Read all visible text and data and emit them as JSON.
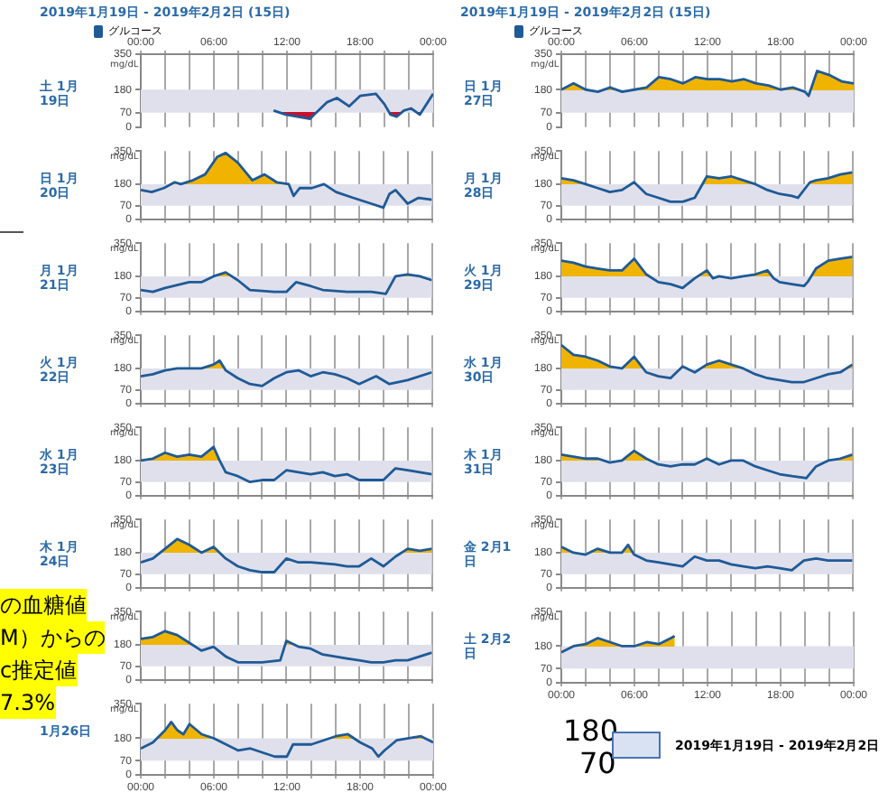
{
  "chart_data": [
    {
      "type": "line",
      "title": "2019年1月19日 - 2019年2月2日 (15日)",
      "subtitle": "土 1月19日",
      "ylabel": "mg/dL",
      "legend": "top left",
      "grid": "x",
      "series": [
        {
          "name": "グルコース",
          "color": "#1f5a96",
          "x": [
            10.9,
            11.9,
            13.9,
            14.4,
            15.3,
            16.1,
            17.1,
            18.0,
            19.3,
            20.0,
            20.5,
            21.0,
            21.6,
            22.2,
            22.9,
            24
          ],
          "values": [
            80,
            60,
            40,
            70,
            120,
            140,
            100,
            150,
            160,
            110,
            60,
            50,
            80,
            90,
            60,
            160
          ]
        }
      ],
      "xlim": [
        0,
        24
      ],
      "xticks": [
        {
          "value": 0,
          "label": "00:00"
        },
        {
          "value": 2,
          "label": null
        },
        {
          "value": 4,
          "label": null
        },
        {
          "value": 6,
          "label": "06:00"
        },
        {
          "value": 8,
          "label": null
        },
        {
          "value": 10,
          "label": null
        },
        {
          "value": 12,
          "label": "12:00"
        },
        {
          "value": 14,
          "label": null
        },
        {
          "value": 16,
          "label": null
        },
        {
          "value": 18,
          "label": "18:00"
        },
        {
          "value": 20,
          "label": null
        },
        {
          "value": 22,
          "label": null
        },
        {
          "value": 24,
          "label": "00:00"
        }
      ],
      "ylim": [
        0,
        350
      ],
      "yticks": [
        0,
        70,
        180,
        350
      ],
      "bands": [
        {
          "axis": "y",
          "from": 70,
          "to": 180,
          "color": "#dfe0ec"
        }
      ]
    },
    {
      "type": "line",
      "subtitle": "日 1月20日",
      "ylabel": "mg/dL",
      "grid": "x",
      "tick_labels": "y",
      "series": [
        {
          "color": "#1f5a96",
          "x": [
            0,
            0.9,
            1.9,
            2.8,
            3.3,
            4.3,
            5.3,
            6.3,
            7.0,
            8.0,
            9.2,
            10.2,
            11.2,
            12.2,
            12.6,
            13.1,
            14.1,
            15.1,
            16.1,
            17.5,
            19.0,
            20.0,
            20.5,
            21.0,
            22.0,
            22.9,
            24
          ],
          "values": [
            150,
            140,
            160,
            190,
            180,
            200,
            230,
            320,
            340,
            290,
            200,
            230,
            190,
            180,
            120,
            160,
            160,
            180,
            140,
            110,
            80,
            60,
            130,
            150,
            80,
            110,
            100
          ]
        }
      ],
      "xlim": [
        0,
        24
      ],
      "xticks": [
        {
          "value": 0,
          "label": null
        },
        {
          "value": 2,
          "label": null
        },
        {
          "value": 4,
          "label": null
        },
        {
          "value": 6,
          "label": null
        },
        {
          "value": 8,
          "label": null
        },
        {
          "value": 10,
          "label": null
        },
        {
          "value": 12,
          "label": null
        },
        {
          "value": 14,
          "label": null
        },
        {
          "value": 16,
          "label": null
        },
        {
          "value": 18,
          "label": null
        },
        {
          "value": 20,
          "label": null
        },
        {
          "value": 22,
          "label": null
        },
        {
          "value": 24,
          "label": null
        }
      ],
      "ylim": [
        0,
        350
      ],
      "yticks": [
        0,
        70,
        180,
        350
      ],
      "bands": [
        {
          "axis": "y",
          "from": 70,
          "to": 180,
          "color": "#dfe0ec"
        }
      ]
    },
    {
      "type": "line",
      "subtitle": "月 1月21日",
      "ylabel": "mg/dL",
      "grid": "x",
      "tick_labels": "y",
      "series": [
        {
          "color": "#1f5a96",
          "x": [
            0,
            1,
            2,
            4,
            5,
            6,
            7,
            8,
            9,
            11,
            12,
            12.8,
            14,
            15,
            17,
            19,
            20.2,
            21,
            22,
            23,
            24
          ],
          "values": [
            110,
            100,
            120,
            150,
            150,
            180,
            200,
            160,
            110,
            100,
            100,
            150,
            130,
            110,
            100,
            100,
            90,
            180,
            190,
            180,
            160
          ]
        }
      ],
      "xlim": [
        0,
        24
      ],
      "xticks": [
        {
          "value": 0,
          "label": null
        },
        {
          "value": 2,
          "label": null
        },
        {
          "value": 4,
          "label": null
        },
        {
          "value": 6,
          "label": null
        },
        {
          "value": 8,
          "label": null
        },
        {
          "value": 10,
          "label": null
        },
        {
          "value": 12,
          "label": null
        },
        {
          "value": 14,
          "label": null
        },
        {
          "value": 16,
          "label": null
        },
        {
          "value": 18,
          "label": null
        },
        {
          "value": 20,
          "label": null
        },
        {
          "value": 22,
          "label": null
        },
        {
          "value": 24,
          "label": null
        }
      ],
      "ylim": [
        0,
        350
      ],
      "yticks": [
        0,
        70,
        180,
        350
      ],
      "bands": [
        {
          "axis": "y",
          "from": 70,
          "to": 180,
          "color": "#dfe0ec"
        }
      ]
    },
    {
      "type": "line",
      "subtitle": "火 1月22日",
      "ylabel": "mg/dL",
      "grid": "x",
      "tick_labels": "y",
      "series": [
        {
          "color": "#1f5a96",
          "x": [
            0,
            1,
            2,
            3,
            4,
            5,
            6,
            6.5,
            7,
            8,
            9,
            10,
            11,
            12,
            13,
            14,
            15,
            16,
            17,
            18,
            19.4,
            20.5,
            22,
            24
          ],
          "values": [
            140,
            150,
            170,
            180,
            180,
            180,
            200,
            220,
            170,
            130,
            100,
            90,
            130,
            160,
            170,
            140,
            160,
            150,
            130,
            100,
            140,
            100,
            120,
            160
          ]
        }
      ],
      "xlim": [
        0,
        24
      ],
      "xticks": [
        {
          "value": 0,
          "label": null
        },
        {
          "value": 2,
          "label": null
        },
        {
          "value": 4,
          "label": null
        },
        {
          "value": 6,
          "label": null
        },
        {
          "value": 8,
          "label": null
        },
        {
          "value": 10,
          "label": null
        },
        {
          "value": 12,
          "label": null
        },
        {
          "value": 14,
          "label": null
        },
        {
          "value": 16,
          "label": null
        },
        {
          "value": 18,
          "label": null
        },
        {
          "value": 20,
          "label": null
        },
        {
          "value": 22,
          "label": null
        },
        {
          "value": 24,
          "label": null
        }
      ],
      "ylim": [
        0,
        350
      ],
      "yticks": [
        0,
        70,
        180,
        350
      ],
      "bands": [
        {
          "axis": "y",
          "from": 70,
          "to": 180,
          "color": "#dfe0ec"
        }
      ]
    },
    {
      "type": "line",
      "subtitle": "水 1月23日",
      "ylabel": "mg/dL",
      "grid": "x",
      "tick_labels": "y",
      "series": [
        {
          "color": "#1f5a96",
          "x": [
            0,
            1,
            2,
            3,
            4,
            5,
            6,
            6.5,
            7,
            8,
            9,
            10,
            11,
            12,
            13,
            14,
            15,
            16,
            17,
            18,
            19,
            20,
            21,
            22,
            24
          ],
          "values": [
            180,
            190,
            220,
            200,
            210,
            200,
            250,
            180,
            120,
            100,
            70,
            80,
            80,
            130,
            120,
            110,
            120,
            100,
            110,
            80,
            80,
            80,
            140,
            130,
            110
          ]
        }
      ],
      "xlim": [
        0,
        24
      ],
      "xticks": [
        {
          "value": 0,
          "label": null
        },
        {
          "value": 2,
          "label": null
        },
        {
          "value": 4,
          "label": null
        },
        {
          "value": 6,
          "label": null
        },
        {
          "value": 8,
          "label": null
        },
        {
          "value": 10,
          "label": null
        },
        {
          "value": 12,
          "label": null
        },
        {
          "value": 14,
          "label": null
        },
        {
          "value": 16,
          "label": null
        },
        {
          "value": 18,
          "label": null
        },
        {
          "value": 20,
          "label": null
        },
        {
          "value": 22,
          "label": null
        },
        {
          "value": 24,
          "label": null
        }
      ],
      "ylim": [
        0,
        350
      ],
      "yticks": [
        0,
        70,
        180,
        350
      ],
      "bands": [
        {
          "axis": "y",
          "from": 70,
          "to": 180,
          "color": "#dfe0ec"
        }
      ]
    },
    {
      "type": "line",
      "subtitle": "木 1月24日",
      "ylabel": "mg/dL",
      "grid": "x",
      "tick_labels": "y",
      "series": [
        {
          "color": "#1f5a96",
          "x": [
            0,
            1,
            2,
            3,
            4,
            5,
            6,
            7,
            8,
            9,
            10,
            11,
            12,
            13,
            14,
            16,
            17,
            18,
            19,
            20,
            21,
            22,
            23,
            24
          ],
          "values": [
            130,
            150,
            200,
            250,
            220,
            180,
            210,
            150,
            110,
            90,
            80,
            80,
            150,
            130,
            130,
            120,
            110,
            110,
            150,
            110,
            160,
            200,
            190,
            200
          ]
        }
      ],
      "xlim": [
        0,
        24
      ],
      "xticks": [
        {
          "value": 0,
          "label": null
        },
        {
          "value": 2,
          "label": null
        },
        {
          "value": 4,
          "label": null
        },
        {
          "value": 6,
          "label": null
        },
        {
          "value": 8,
          "label": null
        },
        {
          "value": 10,
          "label": null
        },
        {
          "value": 12,
          "label": null
        },
        {
          "value": 14,
          "label": null
        },
        {
          "value": 16,
          "label": null
        },
        {
          "value": 18,
          "label": null
        },
        {
          "value": 20,
          "label": null
        },
        {
          "value": 22,
          "label": null
        },
        {
          "value": 24,
          "label": null
        }
      ],
      "ylim": [
        0,
        350
      ],
      "yticks": [
        0,
        70,
        180,
        350
      ],
      "bands": [
        {
          "axis": "y",
          "from": 70,
          "to": 180,
          "color": "#dfe0ec"
        }
      ]
    },
    {
      "type": "line",
      "ylabel": "mg/dL",
      "grid": "x",
      "tick_labels": "y",
      "annotations": [
        "の血糖値",
        "M）からの",
        "c推定値",
        "7.3%"
      ],
      "series": [
        {
          "color": "#1f5a96",
          "x": [
            0,
            1,
            2,
            3,
            4,
            5,
            6,
            7,
            8,
            9,
            10,
            11.5,
            12,
            13,
            14,
            15,
            16,
            17,
            18,
            19,
            20,
            21,
            22,
            23,
            24
          ],
          "values": [
            210,
            220,
            250,
            230,
            190,
            150,
            170,
            120,
            90,
            90,
            90,
            100,
            200,
            170,
            160,
            130,
            120,
            110,
            100,
            90,
            90,
            100,
            100,
            120,
            140
          ]
        }
      ],
      "xlim": [
        0,
        24
      ],
      "xticks": [
        {
          "value": 0,
          "label": null
        },
        {
          "value": 2,
          "label": null
        },
        {
          "value": 4,
          "label": null
        },
        {
          "value": 6,
          "label": null
        },
        {
          "value": 8,
          "label": null
        },
        {
          "value": 10,
          "label": null
        },
        {
          "value": 12,
          "label": null
        },
        {
          "value": 14,
          "label": null
        },
        {
          "value": 16,
          "label": null
        },
        {
          "value": 18,
          "label": null
        },
        {
          "value": 20,
          "label": null
        },
        {
          "value": 22,
          "label": null
        },
        {
          "value": 24,
          "label": null
        }
      ],
      "ylim": [
        0,
        350
      ],
      "yticks": [
        0,
        70,
        180,
        350
      ],
      "bands": [
        {
          "axis": "y",
          "from": 70,
          "to": 180,
          "color": "#dfe0ec"
        }
      ]
    },
    {
      "type": "line",
      "subtitle": "1月26日",
      "ylabel": "mg/dL",
      "grid": "x",
      "series": [
        {
          "color": "#1f5a96",
          "x": [
            0,
            1,
            2,
            2.5,
            3,
            3.5,
            4,
            5,
            6,
            7,
            8,
            9,
            10,
            11,
            12,
            12.5,
            14,
            15,
            16,
            17,
            18,
            19,
            19.5,
            20,
            21,
            22,
            23,
            24
          ],
          "values": [
            130,
            160,
            220,
            260,
            220,
            200,
            250,
            200,
            180,
            150,
            120,
            130,
            110,
            90,
            90,
            150,
            150,
            170,
            190,
            200,
            160,
            130,
            90,
            120,
            170,
            180,
            190,
            160
          ]
        }
      ],
      "xlim": [
        0,
        24
      ],
      "xticks": [
        {
          "value": 0,
          "label": "00:00"
        },
        {
          "value": 2,
          "label": null
        },
        {
          "value": 4,
          "label": null
        },
        {
          "value": 6,
          "label": "06:00"
        },
        {
          "value": 8,
          "label": null
        },
        {
          "value": 10,
          "label": null
        },
        {
          "value": 12,
          "label": "12:00"
        },
        {
          "value": 14,
          "label": null
        },
        {
          "value": 16,
          "label": null
        },
        {
          "value": 18,
          "label": "18:00"
        },
        {
          "value": 20,
          "label": null
        },
        {
          "value": 22,
          "label": null
        },
        {
          "value": 24,
          "label": "00:00"
        }
      ],
      "ylim": [
        0,
        350
      ],
      "yticks": [
        0,
        70,
        180,
        350
      ],
      "bands": [
        {
          "axis": "y",
          "from": 70,
          "to": 180,
          "color": "#dfe0ec"
        }
      ]
    },
    {
      "type": "line",
      "title": "2019年1月19日 - 2019年2月2日 (15日)",
      "subtitle": "日 1月27日",
      "ylabel": "mg/dL",
      "legend": "top left",
      "grid": "x",
      "series": [
        {
          "name": "グルコース",
          "color": "#1f5a96",
          "x": [
            0,
            1,
            2,
            3,
            4,
            5,
            6,
            7,
            8,
            9,
            10,
            11,
            12,
            13,
            14,
            15,
            16,
            17,
            18,
            19,
            20,
            20.3,
            21,
            22,
            23,
            24
          ],
          "values": [
            180,
            210,
            180,
            170,
            190,
            170,
            180,
            190,
            240,
            230,
            210,
            240,
            230,
            230,
            220,
            230,
            210,
            200,
            180,
            190,
            170,
            150,
            270,
            250,
            220,
            210
          ]
        }
      ],
      "xlim": [
        0,
        24
      ],
      "xticks": [
        {
          "value": 0,
          "label": "00:00"
        },
        {
          "value": 2,
          "label": null
        },
        {
          "value": 4,
          "label": null
        },
        {
          "value": 6,
          "label": "06:00"
        },
        {
          "value": 8,
          "label": null
        },
        {
          "value": 10,
          "label": null
        },
        {
          "value": 12,
          "label": "12:00"
        },
        {
          "value": 14,
          "label": null
        },
        {
          "value": 16,
          "label": null
        },
        {
          "value": 18,
          "label": "18:00"
        },
        {
          "value": 20,
          "label": null
        },
        {
          "value": 22,
          "label": null
        },
        {
          "value": 24,
          "label": "00:00"
        }
      ],
      "ylim": [
        0,
        350
      ],
      "yticks": [
        0,
        70,
        180,
        350
      ],
      "bands": [
        {
          "axis": "y",
          "from": 70,
          "to": 180,
          "color": "#dfe0ec"
        }
      ]
    },
    {
      "type": "line",
      "subtitle": "月 1月28日",
      "ylabel": "mg/dL",
      "grid": "x",
      "tick_labels": "y",
      "series": [
        {
          "color": "#1f5a96",
          "x": [
            0,
            1,
            2,
            3,
            4,
            5,
            6,
            7,
            8,
            9,
            10,
            11,
            12,
            13,
            14,
            15,
            16,
            17,
            18,
            19,
            19.5,
            20.5,
            21,
            22,
            23,
            24
          ],
          "values": [
            210,
            200,
            180,
            160,
            140,
            150,
            190,
            130,
            110,
            90,
            90,
            110,
            220,
            210,
            220,
            200,
            180,
            150,
            130,
            120,
            110,
            190,
            200,
            210,
            230,
            240
          ]
        }
      ],
      "xlim": [
        0,
        24
      ],
      "xticks": [
        {
          "value": 0,
          "label": null
        },
        {
          "value": 2,
          "label": null
        },
        {
          "value": 4,
          "label": null
        },
        {
          "value": 6,
          "label": null
        },
        {
          "value": 8,
          "label": null
        },
        {
          "value": 10,
          "label": null
        },
        {
          "value": 12,
          "label": null
        },
        {
          "value": 14,
          "label": null
        },
        {
          "value": 16,
          "label": null
        },
        {
          "value": 18,
          "label": null
        },
        {
          "value": 20,
          "label": null
        },
        {
          "value": 22,
          "label": null
        },
        {
          "value": 24,
          "label": null
        }
      ],
      "ylim": [
        0,
        350
      ],
      "yticks": [
        0,
        70,
        180,
        350
      ],
      "bands": [
        {
          "axis": "y",
          "from": 70,
          "to": 180,
          "color": "#dfe0ec"
        }
      ]
    },
    {
      "type": "line",
      "subtitle": "火 1月29日",
      "ylabel": "mg/dL",
      "grid": "x",
      "tick_labels": "y",
      "series": [
        {
          "color": "#1f5a96",
          "x": [
            0,
            1,
            2,
            3,
            4,
            5,
            6,
            7,
            8,
            9,
            10,
            11,
            12,
            12.5,
            13,
            14,
            15,
            16,
            17,
            17.5,
            18,
            19,
            20,
            20.3,
            21,
            22,
            23,
            24
          ],
          "values": [
            260,
            250,
            230,
            220,
            210,
            210,
            270,
            190,
            150,
            140,
            120,
            170,
            210,
            170,
            180,
            170,
            180,
            190,
            210,
            170,
            150,
            140,
            130,
            150,
            220,
            260,
            270,
            280
          ]
        }
      ],
      "xlim": [
        0,
        24
      ],
      "xticks": [
        {
          "value": 0,
          "label": null
        },
        {
          "value": 2,
          "label": null
        },
        {
          "value": 4,
          "label": null
        },
        {
          "value": 6,
          "label": null
        },
        {
          "value": 8,
          "label": null
        },
        {
          "value": 10,
          "label": null
        },
        {
          "value": 12,
          "label": null
        },
        {
          "value": 14,
          "label": null
        },
        {
          "value": 16,
          "label": null
        },
        {
          "value": 18,
          "label": null
        },
        {
          "value": 20,
          "label": null
        },
        {
          "value": 22,
          "label": null
        },
        {
          "value": 24,
          "label": null
        }
      ],
      "ylim": [
        0,
        350
      ],
      "yticks": [
        0,
        70,
        180,
        350
      ],
      "bands": [
        {
          "axis": "y",
          "from": 70,
          "to": 180,
          "color": "#dfe0ec"
        }
      ]
    },
    {
      "type": "line",
      "subtitle": "水 1月30日",
      "ylabel": "mg/dL",
      "grid": "x",
      "tick_labels": "y",
      "series": [
        {
          "color": "#1f5a96",
          "x": [
            0,
            1,
            2,
            3,
            4,
            5,
            6,
            6.5,
            7,
            8,
            9,
            10,
            11,
            12,
            13,
            14,
            15,
            16,
            17,
            18,
            19,
            20,
            21,
            22,
            23,
            24
          ],
          "values": [
            300,
            250,
            240,
            220,
            190,
            180,
            240,
            200,
            160,
            140,
            130,
            190,
            160,
            200,
            220,
            200,
            180,
            150,
            130,
            120,
            110,
            110,
            130,
            150,
            160,
            200
          ]
        }
      ],
      "xlim": [
        0,
        24
      ],
      "xticks": [
        {
          "value": 0,
          "label": null
        },
        {
          "value": 2,
          "label": null
        },
        {
          "value": 4,
          "label": null
        },
        {
          "value": 6,
          "label": null
        },
        {
          "value": 8,
          "label": null
        },
        {
          "value": 10,
          "label": null
        },
        {
          "value": 12,
          "label": null
        },
        {
          "value": 14,
          "label": null
        },
        {
          "value": 16,
          "label": null
        },
        {
          "value": 18,
          "label": null
        },
        {
          "value": 20,
          "label": null
        },
        {
          "value": 22,
          "label": null
        },
        {
          "value": 24,
          "label": null
        }
      ],
      "ylim": [
        0,
        350
      ],
      "yticks": [
        0,
        70,
        180,
        350
      ],
      "bands": [
        {
          "axis": "y",
          "from": 70,
          "to": 180,
          "color": "#dfe0ec"
        }
      ]
    },
    {
      "type": "line",
      "subtitle": "木 1月31日",
      "ylabel": "mg/dL",
      "grid": "x",
      "tick_labels": "y",
      "series": [
        {
          "color": "#1f5a96",
          "x": [
            0,
            1,
            2,
            3,
            4,
            5,
            6,
            7,
            8,
            9,
            10,
            11,
            12,
            13,
            14,
            15,
            16,
            17,
            18,
            19,
            20.2,
            21,
            22,
            23,
            24
          ],
          "values": [
            210,
            200,
            190,
            190,
            170,
            180,
            230,
            190,
            160,
            150,
            160,
            160,
            190,
            160,
            180,
            180,
            150,
            130,
            110,
            100,
            90,
            150,
            180,
            190,
            210
          ]
        }
      ],
      "xlim": [
        0,
        24
      ],
      "xticks": [
        {
          "value": 0,
          "label": null
        },
        {
          "value": 2,
          "label": null
        },
        {
          "value": 4,
          "label": null
        },
        {
          "value": 6,
          "label": null
        },
        {
          "value": 8,
          "label": null
        },
        {
          "value": 10,
          "label": null
        },
        {
          "value": 12,
          "label": null
        },
        {
          "value": 14,
          "label": null
        },
        {
          "value": 16,
          "label": null
        },
        {
          "value": 18,
          "label": null
        },
        {
          "value": 20,
          "label": null
        },
        {
          "value": 22,
          "label": null
        },
        {
          "value": 24,
          "label": null
        }
      ],
      "ylim": [
        0,
        350
      ],
      "yticks": [
        0,
        70,
        180,
        350
      ],
      "bands": [
        {
          "axis": "y",
          "from": 70,
          "to": 180,
          "color": "#dfe0ec"
        }
      ]
    },
    {
      "type": "line",
      "subtitle": "金 2月1日",
      "ylabel": "mg/dL",
      "grid": "x",
      "tick_labels": "y",
      "series": [
        {
          "color": "#1f5a96",
          "x": [
            0,
            1,
            2,
            3,
            4,
            5,
            5.5,
            6,
            7,
            8,
            9,
            10,
            11,
            12,
            13,
            14,
            15,
            16,
            17,
            18,
            19,
            20,
            21,
            22,
            24
          ],
          "values": [
            210,
            180,
            170,
            200,
            180,
            180,
            220,
            170,
            140,
            130,
            120,
            110,
            160,
            140,
            140,
            120,
            110,
            100,
            110,
            100,
            90,
            140,
            150,
            140,
            140
          ]
        }
      ],
      "xlim": [
        0,
        24
      ],
      "xticks": [
        {
          "value": 0,
          "label": null
        },
        {
          "value": 2,
          "label": null
        },
        {
          "value": 4,
          "label": null
        },
        {
          "value": 6,
          "label": null
        },
        {
          "value": 8,
          "label": null
        },
        {
          "value": 10,
          "label": null
        },
        {
          "value": 12,
          "label": null
        },
        {
          "value": 14,
          "label": null
        },
        {
          "value": 16,
          "label": null
        },
        {
          "value": 18,
          "label": null
        },
        {
          "value": 20,
          "label": null
        },
        {
          "value": 22,
          "label": null
        },
        {
          "value": 24,
          "label": null
        }
      ],
      "ylim": [
        0,
        350
      ],
      "yticks": [
        0,
        70,
        180,
        350
      ],
      "bands": [
        {
          "axis": "y",
          "from": 70,
          "to": 180,
          "color": "#dfe0ec"
        }
      ]
    },
    {
      "type": "line",
      "subtitle": "土 2月2日",
      "ylabel": "mg/dL",
      "grid": "x",
      "annotations": [
        "180",
        "70",
        "2019年1月19日 - 2019年2月2日"
      ],
      "series": [
        {
          "color": "#1f5a96",
          "x": [
            0,
            1,
            2,
            3,
            4,
            5,
            6,
            7,
            8,
            9,
            9.3
          ],
          "values": [
            150,
            180,
            190,
            220,
            200,
            180,
            180,
            200,
            190,
            220,
            230
          ]
        }
      ],
      "xlim": [
        0,
        24
      ],
      "xticks": [
        {
          "value": 0,
          "label": "00:00"
        },
        {
          "value": 2,
          "label": null
        },
        {
          "value": 4,
          "label": null
        },
        {
          "value": 6,
          "label": "06:00"
        },
        {
          "value": 8,
          "label": null
        },
        {
          "value": 10,
          "label": null
        },
        {
          "value": 12,
          "label": "12:00"
        },
        {
          "value": 14,
          "label": null
        },
        {
          "value": 16,
          "label": null
        },
        {
          "value": 18,
          "label": "18:00"
        },
        {
          "value": 20,
          "label": null
        },
        {
          "value": 22,
          "label": null
        },
        {
          "value": 24,
          "label": "00:00"
        }
      ],
      "ylim": [
        0,
        350
      ],
      "yticks": [
        0,
        70,
        180,
        350
      ],
      "bands": [
        {
          "axis": "y",
          "from": 70,
          "to": 180,
          "color": "#dfe0ec"
        }
      ]
    }
  ]
}
